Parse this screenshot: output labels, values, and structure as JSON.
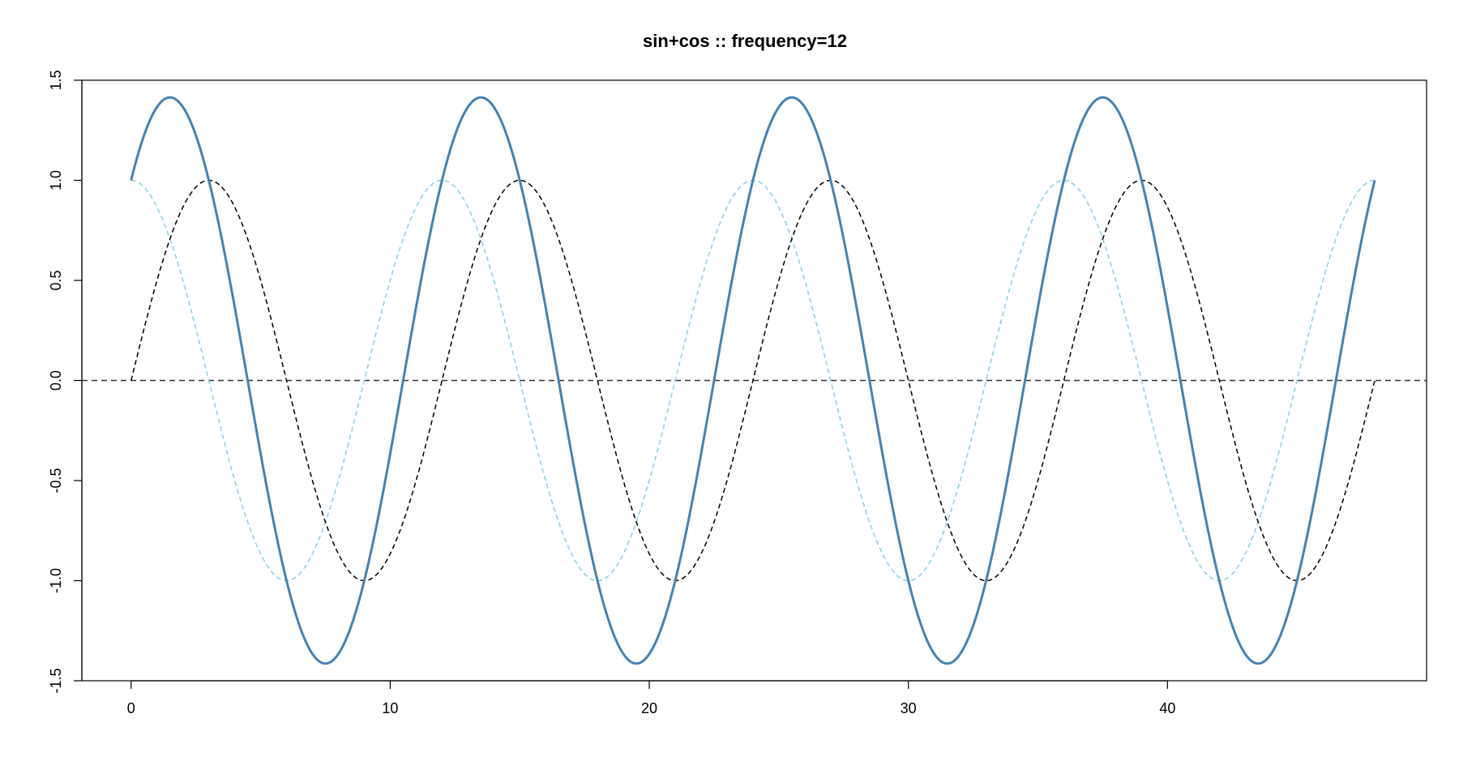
{
  "chart_data": {
    "type": "line",
    "title": "sin+cos :: frequency=12",
    "xlabel": "",
    "ylabel": "",
    "xlim": [
      -1.9,
      50
    ],
    "ylim": [
      -1.5,
      1.5
    ],
    "x_ticks": [
      0,
      10,
      20,
      30,
      40
    ],
    "x_tick_labels": [
      "0",
      "10",
      "20",
      "30",
      "40"
    ],
    "y_ticks": [
      -1.5,
      -1.0,
      -0.5,
      0.0,
      0.5,
      1.0,
      1.5
    ],
    "y_tick_labels": [
      "-1.5",
      "-1.0",
      "-0.5",
      "0.0",
      "0.5",
      "1.0",
      "1.5"
    ],
    "grid": false,
    "legend": "none",
    "frequency": 12,
    "x_range": [
      0,
      48
    ],
    "series": [
      {
        "function": "sin(2*pi*x/frequency)",
        "color": "#000000",
        "style": "dashed",
        "x": [
          0,
          3,
          6,
          9,
          12,
          15,
          18,
          21,
          24,
          27,
          30,
          33,
          36,
          39,
          42,
          45,
          48
        ],
        "values": [
          0,
          1,
          0,
          -1,
          0,
          1,
          0,
          -1,
          0,
          1,
          0,
          -1,
          0,
          1,
          0,
          -1,
          0
        ]
      },
      {
        "function": "cos(2*pi*x/frequency)",
        "color": "#87ceeb",
        "style": "dashed",
        "x": [
          0,
          3,
          6,
          9,
          12,
          15,
          18,
          21,
          24,
          27,
          30,
          33,
          36,
          39,
          42,
          45,
          48
        ],
        "values": [
          1,
          0,
          -1,
          0,
          1,
          0,
          -1,
          0,
          1,
          0,
          -1,
          0,
          1,
          0,
          -1,
          0,
          1
        ]
      },
      {
        "function": "sin(2*pi*x/frequency)+cos(2*pi*x/frequency)",
        "color": "#4682b4",
        "style": "solid",
        "x": [
          0,
          1.5,
          4.5,
          7.5,
          10.5,
          13.5,
          16.5,
          19.5,
          22.5,
          25.5,
          28.5,
          31.5,
          34.5,
          37.5,
          40.5,
          43.5,
          46.5,
          48
        ],
        "values": [
          1,
          1.414,
          0,
          -1.414,
          0,
          1.414,
          0,
          -1.414,
          0,
          1.414,
          0,
          -1.414,
          0,
          1.414,
          0,
          -1.414,
          0,
          1
        ]
      }
    ],
    "reference_lines": [
      {
        "y": 0,
        "color": "#333333",
        "style": "dashed"
      }
    ]
  }
}
